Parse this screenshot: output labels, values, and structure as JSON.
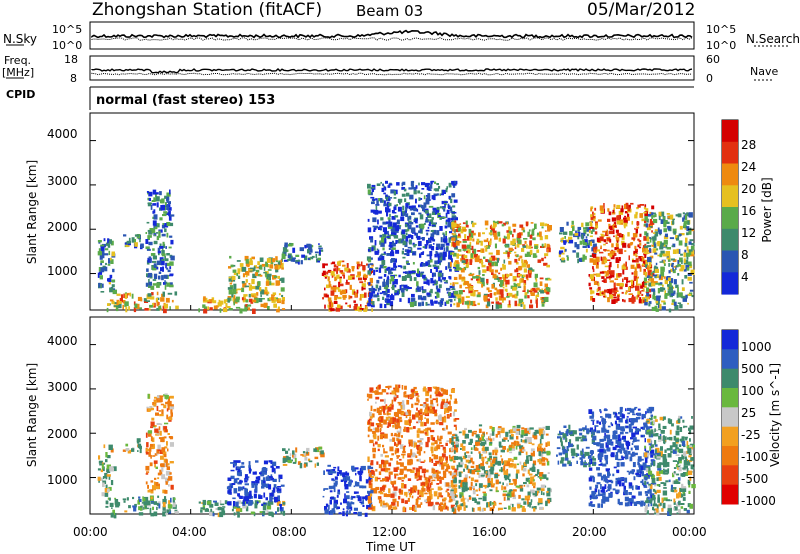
{
  "header": {
    "station": "Zhongshan Station (fitACF)",
    "beam": "Beam 03",
    "date": "05/Mar/2012"
  },
  "noise_panel": {
    "left_label": "N.Sky",
    "left_ticks": [
      "10^5",
      "10^0"
    ],
    "right_label": "N.Search",
    "right_ticks": [
      "10^5",
      "10^0"
    ]
  },
  "freq_panel": {
    "left_label_1": "Freq.",
    "left_label_2": "[MHz]",
    "left_ticks": [
      "18",
      "8"
    ],
    "right_label": "Nave",
    "right_ticks": [
      "60",
      "0"
    ]
  },
  "cpid_panel": {
    "label": "CPID",
    "text": "normal (fast stereo) 153"
  },
  "chart_data": [
    {
      "type": "heatmap",
      "title": "",
      "xlabel": "",
      "ylabel": "Slant Range [km]",
      "xlim": [
        0,
        24
      ],
      "ylim": [
        200,
        4600
      ],
      "yticks": [
        "1000",
        "2000",
        "3000",
        "4000"
      ],
      "colorbar_label": "Power [dB]",
      "colorbar_ticks": [
        "4",
        "8",
        "12",
        "16",
        "20",
        "24",
        "28"
      ],
      "colorbar_colors": [
        "#1428d8",
        "#2a55b2",
        "#3e8a6c",
        "#5aaa4a",
        "#e6c020",
        "#ee8a10",
        "#e23010",
        "#d40000"
      ],
      "regions": [
        {
          "t0": 0.3,
          "t1": 0.9,
          "r0": 600,
          "r1": 1800,
          "intensity": 0.3
        },
        {
          "t0": 0.6,
          "t1": 3.4,
          "r0": 200,
          "r1": 600,
          "intensity": 0.55
        },
        {
          "t0": 1.3,
          "t1": 2.0,
          "r0": 1600,
          "r1": 1900,
          "intensity": 0.3
        },
        {
          "t0": 2.2,
          "t1": 3.2,
          "r0": 700,
          "r1": 2900,
          "intensity": 0.25
        },
        {
          "t0": 4.3,
          "t1": 7.7,
          "r0": 200,
          "r1": 500,
          "intensity": 0.6
        },
        {
          "t0": 5.4,
          "t1": 7.6,
          "r0": 400,
          "r1": 1400,
          "intensity": 0.5
        },
        {
          "t0": 7.6,
          "t1": 9.2,
          "r0": 1300,
          "r1": 1700,
          "intensity": 0.25
        },
        {
          "t0": 9.2,
          "t1": 11.2,
          "r0": 200,
          "r1": 1300,
          "intensity": 0.75
        },
        {
          "t0": 11.0,
          "t1": 14.5,
          "r0": 300,
          "r1": 3100,
          "intensity": 0.15
        },
        {
          "t0": 14.3,
          "t1": 18.2,
          "r0": 300,
          "r1": 2200,
          "intensity": 0.6
        },
        {
          "t0": 18.5,
          "t1": 20.0,
          "r0": 1300,
          "r1": 2200,
          "intensity": 0.35
        },
        {
          "t0": 19.8,
          "t1": 22.3,
          "r0": 400,
          "r1": 2600,
          "intensity": 0.75
        },
        {
          "t0": 22.0,
          "t1": 23.9,
          "r0": 200,
          "r1": 2400,
          "intensity": 0.4
        }
      ]
    },
    {
      "type": "heatmap",
      "title": "",
      "xlabel": "Time UT",
      "ylabel": "Slant Range [km]",
      "xlim": [
        0,
        24
      ],
      "ylim": [
        200,
        4600
      ],
      "xticks": [
        "00:00",
        "04:00",
        "08:00",
        "12:00",
        "16:00",
        "20:00",
        "00:00"
      ],
      "yticks": [
        "1000",
        "2000",
        "3000",
        "4000"
      ],
      "colorbar_label": "Velocity [m s^-1]",
      "colorbar_ticks": [
        "1000",
        "500",
        "100",
        "25",
        "-25",
        "-100",
        "-500",
        "-1000"
      ],
      "colorbar_colors": [
        "#1428d8",
        "#2f5ec0",
        "#3e8a6c",
        "#6ab83e",
        "#c8c8c8",
        "#f2a020",
        "#ee7a10",
        "#e84010",
        "#e00000"
      ],
      "regions": [
        {
          "t0": 0.3,
          "t1": 0.9,
          "r0": 600,
          "r1": 1800,
          "velocity": 80
        },
        {
          "t0": 0.6,
          "t1": 3.4,
          "r0": 200,
          "r1": 600,
          "velocity": 150
        },
        {
          "t0": 1.3,
          "t1": 2.0,
          "r0": 1600,
          "r1": 1900,
          "velocity": 60
        },
        {
          "t0": 2.2,
          "t1": 3.2,
          "r0": 700,
          "r1": 2900,
          "velocity": -150
        },
        {
          "t0": 4.3,
          "t1": 7.7,
          "r0": 200,
          "r1": 500,
          "velocity": 120
        },
        {
          "t0": 5.4,
          "t1": 7.6,
          "r0": 400,
          "r1": 1400,
          "velocity": 700
        },
        {
          "t0": 7.6,
          "t1": 9.2,
          "r0": 1300,
          "r1": 1700,
          "velocity": 0
        },
        {
          "t0": 9.2,
          "t1": 11.2,
          "r0": 200,
          "r1": 1300,
          "velocity": 700
        },
        {
          "t0": 11.0,
          "t1": 14.5,
          "r0": 300,
          "r1": 3100,
          "velocity": -200
        },
        {
          "t0": 14.3,
          "t1": 18.2,
          "r0": 300,
          "r1": 2200,
          "velocity": 0
        },
        {
          "t0": 18.5,
          "t1": 20.0,
          "r0": 1300,
          "r1": 2200,
          "velocity": 300
        },
        {
          "t0": 19.8,
          "t1": 22.3,
          "r0": 400,
          "r1": 2600,
          "velocity": 600
        },
        {
          "t0": 22.0,
          "t1": 23.9,
          "r0": 200,
          "r1": 2400,
          "velocity": 120
        }
      ]
    }
  ]
}
